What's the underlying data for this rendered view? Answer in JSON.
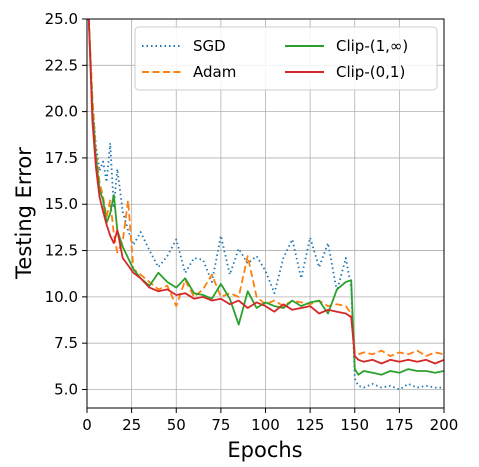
{
  "chart_data": {
    "type": "line",
    "title": "",
    "xlabel": "Epochs",
    "ylabel": "Testing Error",
    "xlim": [
      0,
      200
    ],
    "ylim": [
      4.0,
      25.0
    ],
    "xticks": [
      0,
      25,
      50,
      75,
      100,
      125,
      150,
      175,
      200
    ],
    "yticks": [
      5.0,
      7.5,
      10.0,
      12.5,
      15.0,
      17.5,
      20.0,
      22.5,
      25.0
    ],
    "xtick_labels": [
      "0",
      "25",
      "50",
      "75",
      "100",
      "125",
      "150",
      "175",
      "200"
    ],
    "ytick_labels": [
      "5.0",
      "7.5",
      "10.0",
      "12.5",
      "15.0",
      "17.5",
      "20.0",
      "22.5",
      "25.0"
    ],
    "grid": true,
    "legend_position": "top-right",
    "series": [
      {
        "name": "SGD",
        "color": "#1f77b4",
        "dash": "dotted",
        "x": [
          1,
          3,
          5,
          7,
          9,
          11,
          13,
          15,
          17,
          20,
          23,
          26,
          30,
          35,
          40,
          45,
          50,
          55,
          60,
          65,
          70,
          75,
          80,
          85,
          90,
          95,
          100,
          105,
          110,
          115,
          120,
          125,
          130,
          135,
          140,
          145,
          148,
          150,
          152,
          155,
          160,
          165,
          170,
          175,
          180,
          185,
          190,
          195,
          200
        ],
        "values": [
          25,
          20.5,
          18.2,
          16.8,
          17.3,
          16.2,
          18.3,
          14.8,
          16.9,
          14.6,
          13.6,
          12.8,
          13.5,
          12.5,
          11.6,
          12.2,
          13.1,
          11.3,
          12.1,
          12.0,
          10.8,
          13.3,
          11.2,
          12.6,
          11.8,
          12.2,
          11.4,
          10.2,
          12.1,
          13.1,
          11.0,
          13.2,
          11.6,
          12.9,
          10.3,
          12.1,
          10.5,
          5.6,
          5.2,
          5.1,
          5.3,
          5.1,
          5.2,
          5.0,
          5.3,
          5.1,
          5.2,
          5.1,
          5.1
        ]
      },
      {
        "name": "Adam",
        "color": "#ff7f0e",
        "dash": "dashed",
        "x": [
          1,
          3,
          5,
          7,
          9,
          11,
          13,
          15,
          17,
          20,
          23,
          26,
          30,
          35,
          40,
          45,
          50,
          55,
          60,
          65,
          70,
          75,
          80,
          85,
          90,
          95,
          100,
          105,
          110,
          115,
          120,
          125,
          130,
          135,
          140,
          145,
          148,
          150,
          152,
          155,
          160,
          165,
          170,
          175,
          180,
          185,
          190,
          195,
          200
        ],
        "values": [
          25,
          20.8,
          17.8,
          16.2,
          15.4,
          14.3,
          15.2,
          13.4,
          12.4,
          13.0,
          15.2,
          11.5,
          11.2,
          10.8,
          10.4,
          10.6,
          9.5,
          10.9,
          10.0,
          10.4,
          11.2,
          10.0,
          10.2,
          10.0,
          12.2,
          10.0,
          9.6,
          9.8,
          9.5,
          9.8,
          9.7,
          9.6,
          9.8,
          9.5,
          9.6,
          9.5,
          9.1,
          7.0,
          6.9,
          7.0,
          6.9,
          7.1,
          6.8,
          7.0,
          6.9,
          7.1,
          6.8,
          7.0,
          6.9
        ]
      },
      {
        "name": "Clip-(1,∞)",
        "color": "#2ca02c",
        "dash": "solid",
        "x": [
          1,
          3,
          5,
          7,
          9,
          11,
          13,
          15,
          17,
          20,
          23,
          26,
          30,
          35,
          40,
          45,
          50,
          55,
          60,
          65,
          70,
          75,
          80,
          85,
          90,
          95,
          100,
          105,
          110,
          115,
          120,
          125,
          130,
          135,
          140,
          145,
          148,
          150,
          152,
          155,
          160,
          165,
          170,
          175,
          180,
          185,
          190,
          195,
          200
        ],
        "values": [
          25,
          20.0,
          17.5,
          15.8,
          15.2,
          14.0,
          14.5,
          15.5,
          13.6,
          12.7,
          12.1,
          11.5,
          11.0,
          10.6,
          11.3,
          10.8,
          10.5,
          11.0,
          10.2,
          10.1,
          9.9,
          10.7,
          9.9,
          8.5,
          10.3,
          9.4,
          9.7,
          9.5,
          9.4,
          9.8,
          9.5,
          9.7,
          9.8,
          9.1,
          10.4,
          10.8,
          10.9,
          6.1,
          5.8,
          6.0,
          5.9,
          5.8,
          6.0,
          5.9,
          6.1,
          6.0,
          6.0,
          5.9,
          6.0
        ]
      },
      {
        "name": "Clip-(0,1)",
        "color": "#d62728",
        "dash": "solid",
        "x": [
          1,
          3,
          5,
          7,
          9,
          11,
          13,
          15,
          17,
          20,
          23,
          26,
          30,
          35,
          40,
          45,
          50,
          55,
          60,
          65,
          70,
          75,
          80,
          85,
          90,
          95,
          100,
          105,
          110,
          115,
          120,
          125,
          130,
          135,
          140,
          145,
          148,
          150,
          152,
          155,
          160,
          165,
          170,
          175,
          180,
          185,
          190,
          195,
          200
        ],
        "values": [
          25,
          19.5,
          17.0,
          15.4,
          14.6,
          13.9,
          13.3,
          12.9,
          13.6,
          12.1,
          11.7,
          11.3,
          11.0,
          10.5,
          10.3,
          10.4,
          10.1,
          10.2,
          9.9,
          10.0,
          9.8,
          9.9,
          9.6,
          9.8,
          9.4,
          9.7,
          9.5,
          9.2,
          9.6,
          9.3,
          9.4,
          9.5,
          9.1,
          9.3,
          9.2,
          9.1,
          8.9,
          6.8,
          6.6,
          6.5,
          6.6,
          6.4,
          6.6,
          6.5,
          6.6,
          6.5,
          6.6,
          6.4,
          6.6
        ]
      }
    ]
  }
}
